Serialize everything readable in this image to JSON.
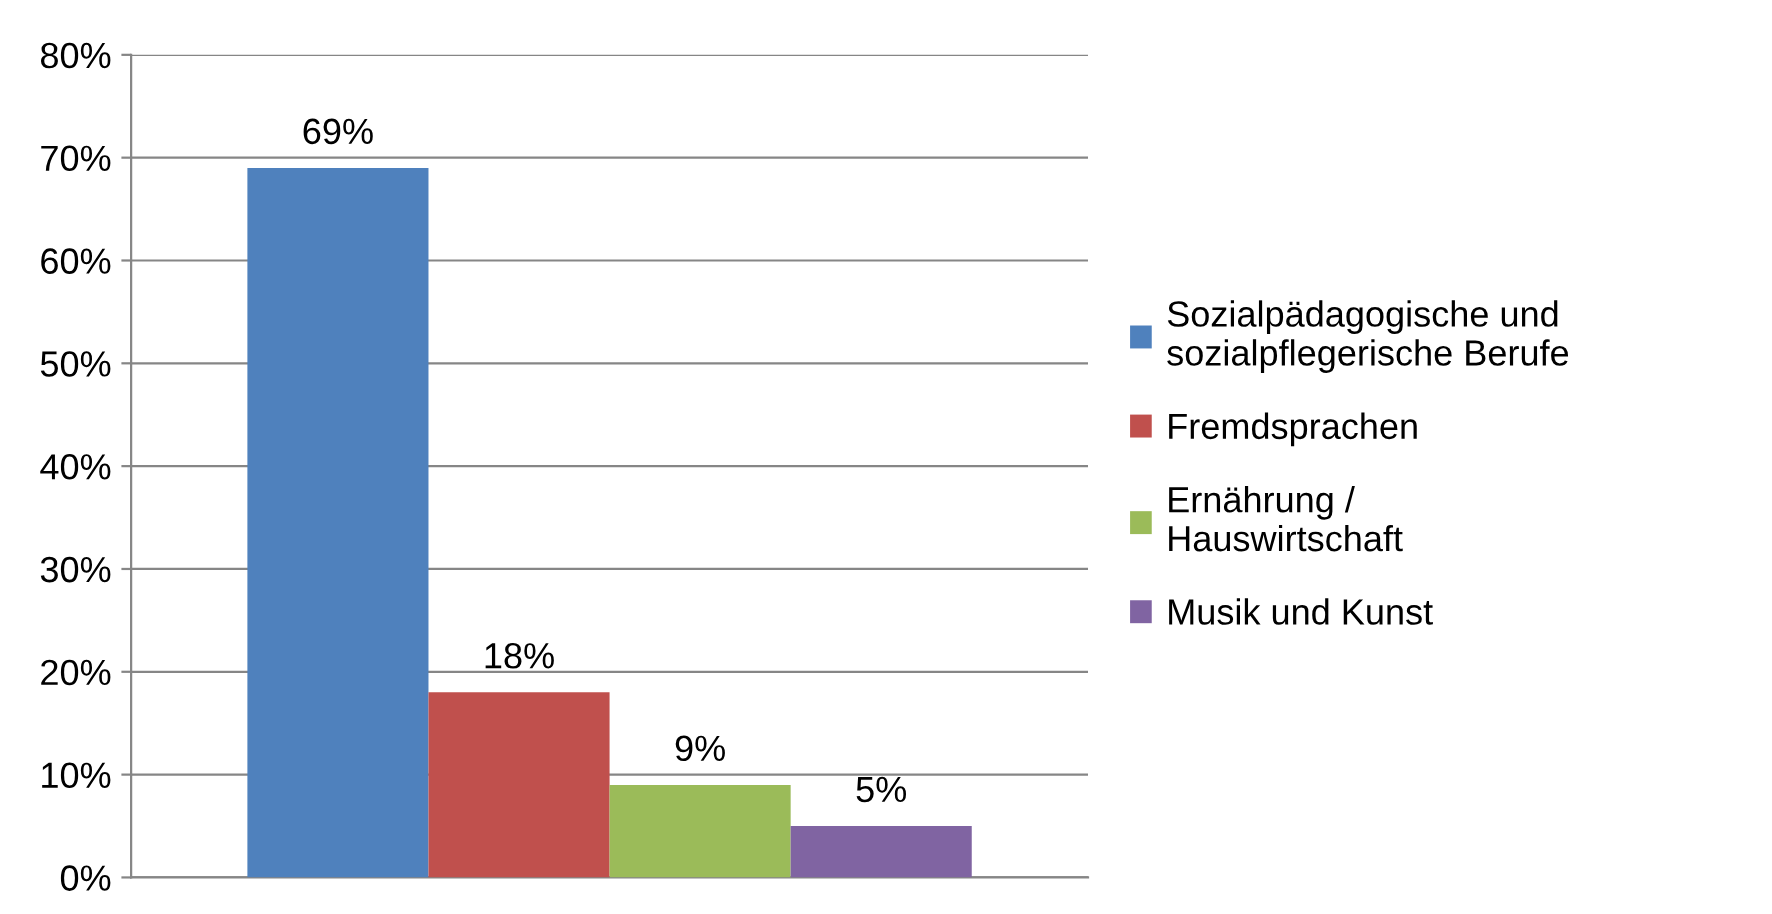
{
  "chart_data": {
    "type": "bar",
    "categories": [
      null
    ],
    "series": [
      {
        "name": "Sozialpädagogische und sozialpflegerische Berufe",
        "color": "#4f81bd",
        "values": [
          69
        ],
        "value_labels": [
          "69%"
        ]
      },
      {
        "name": "Fremdsprachen",
        "color": "#c0504d",
        "values": [
          18
        ],
        "value_labels": [
          "18%"
        ]
      },
      {
        "name": "Ernährung / Hauswirtschaft",
        "color": "#9bbb59",
        "values": [
          9
        ],
        "value_labels": [
          "9%"
        ]
      },
      {
        "name": "Musik und Kunst",
        "color": "#8064a2",
        "values": [
          5
        ],
        "value_labels": [
          "5%"
        ]
      }
    ],
    "ylim": [
      0,
      80
    ],
    "yticks": [
      {
        "value": 0,
        "label": "0%"
      },
      {
        "value": 10,
        "label": "10%"
      },
      {
        "value": 20,
        "label": "20%"
      },
      {
        "value": 30,
        "label": "30%"
      },
      {
        "value": 40,
        "label": "40%"
      },
      {
        "value": 50,
        "label": "50%"
      },
      {
        "value": 60,
        "label": "60%"
      },
      {
        "value": 70,
        "label": "70%"
      },
      {
        "value": 80,
        "label": "80%"
      }
    ],
    "grid": "y",
    "legend": "right"
  }
}
